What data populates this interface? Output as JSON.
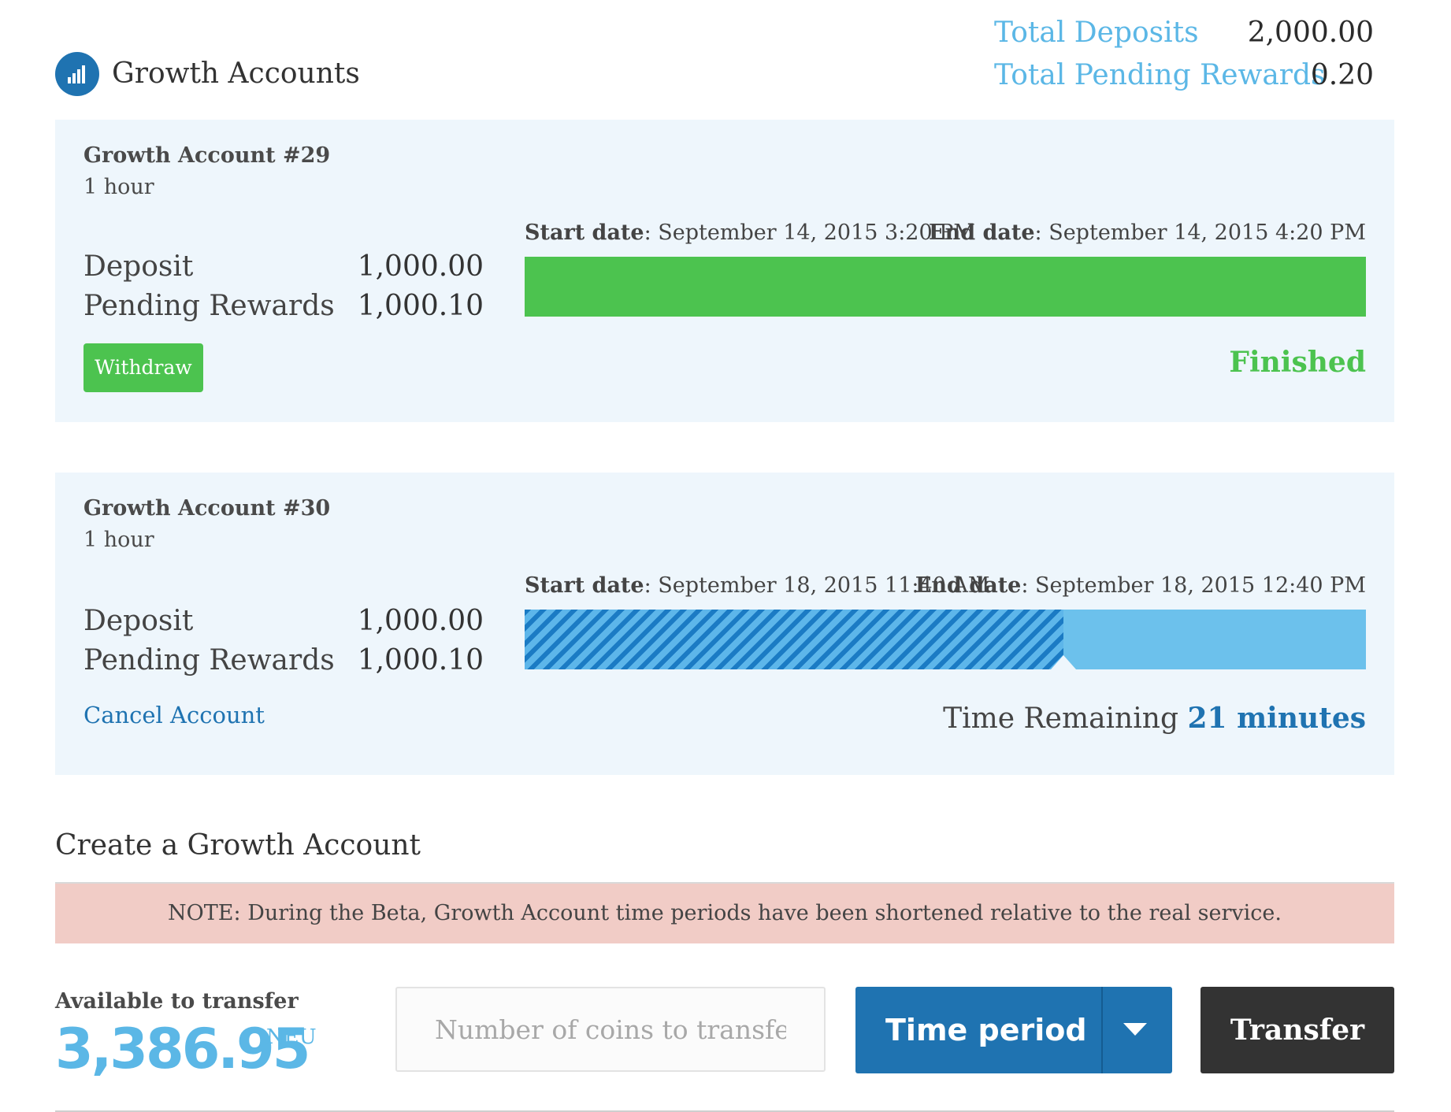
{
  "header": {
    "title": "Growth Accounts",
    "logo_icon": "bar-chart-icon",
    "totals": [
      {
        "label": "Total Deposits",
        "value": "2,000.00"
      },
      {
        "label": "Total Pending Rewards",
        "value": "0.20"
      }
    ]
  },
  "accounts": [
    {
      "title": "Growth Account #29",
      "period": "1 hour",
      "deposit_label": "Deposit",
      "deposit_value": "1,000.00",
      "rewards_label": "Pending Rewards",
      "rewards_value": "1,000.10",
      "start_label": "Start date",
      "start_value": ": September 14, 2015 3:20 PM",
      "end_label": "End date",
      "end_value": ": September 14, 2015 4:20 PM",
      "progress": 1.0,
      "action_label": "Withdraw",
      "status_text": "Finished"
    },
    {
      "title": "Growth Account #30",
      "period": "1 hour",
      "deposit_label": "Deposit",
      "deposit_value": "1,000.00",
      "rewards_label": "Pending Rewards",
      "rewards_value": "1,000.10",
      "start_label": "Start date",
      "start_value": ": September 18, 2015 11:40 AM",
      "end_label": "End date",
      "end_value": ": September 18, 2015 12:40 PM",
      "progress": 0.64,
      "action_label": "Cancel Account",
      "remaining_label": "Time Remaining",
      "remaining_value": "21 minutes"
    }
  ],
  "create": {
    "title": "Create a Growth Account",
    "note": "NOTE: During the Beta, Growth Account time periods have been shortened relative to the real service.",
    "available_label": "Available to transfer",
    "available_value": "3,386.95",
    "available_unit": "NEU",
    "coins_placeholder": "Number of coins to transfer",
    "time_period_label": "Time period",
    "transfer_label": "Transfer"
  },
  "colors": {
    "accent_blue": "#1f73b1",
    "light_blue": "#5bb7e6",
    "green": "#4cc34f",
    "card_bg": "#eef6fc",
    "note_bg": "#f1ccc6"
  }
}
